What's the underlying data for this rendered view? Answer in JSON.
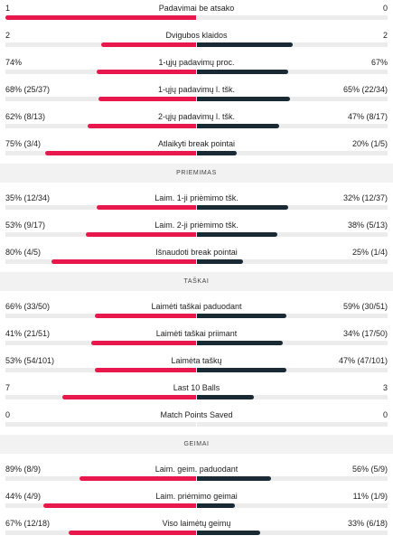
{
  "colors": {
    "player1": "#e8184d",
    "player2": "#1a2a35",
    "track": "#ececec",
    "section_bg": "#f2f2f2"
  },
  "section_serve": {
    "rows": [
      {
        "label": "Padavimai be atsako",
        "left": "1",
        "right": "0",
        "left_frac": 1.0,
        "right_frac": 0.0
      },
      {
        "label": "Dvigubos klaidos",
        "left": "2",
        "right": "2",
        "left_frac": 0.5,
        "right_frac": 0.5
      },
      {
        "label": "1-ųjų padavimų proc.",
        "left": "74%",
        "right": "67%",
        "left_frac": 0.52,
        "right_frac": 0.48
      },
      {
        "label": "1-ųjų padavimų l. tšk.",
        "left": "68% (25/37)",
        "right": "65% (22/34)",
        "left_frac": 0.51,
        "right_frac": 0.49
      },
      {
        "label": "2-ųjų padavimų l. tšk.",
        "left": "62% (8/13)",
        "right": "47% (8/17)",
        "left_frac": 0.57,
        "right_frac": 0.43
      },
      {
        "label": "Atlaikyti break pointai",
        "left": "75% (3/4)",
        "right": "20% (1/5)",
        "left_frac": 0.79,
        "right_frac": 0.21
      }
    ]
  },
  "section_return": {
    "title": "PRIEMIMAS",
    "rows": [
      {
        "label": "Laim. 1-ji priėmimo tšk.",
        "left": "35% (12/34)",
        "right": "32% (12/37)",
        "left_frac": 0.52,
        "right_frac": 0.48
      },
      {
        "label": "Laim. 2-ji priėmimo tšk.",
        "left": "53% (9/17)",
        "right": "38% (5/13)",
        "left_frac": 0.58,
        "right_frac": 0.42
      },
      {
        "label": "Išnaudoti break pointai",
        "left": "80% (4/5)",
        "right": "25% (1/4)",
        "left_frac": 0.76,
        "right_frac": 0.24
      }
    ]
  },
  "section_points": {
    "title": "TAŠKAI",
    "rows": [
      {
        "label": "Laimėti taškai paduodant",
        "left": "66% (33/50)",
        "right": "59% (30/51)",
        "left_frac": 0.53,
        "right_frac": 0.47
      },
      {
        "label": "Laimėti taškai priimant",
        "left": "41% (21/51)",
        "right": "34% (17/50)",
        "left_frac": 0.55,
        "right_frac": 0.45
      },
      {
        "label": "Laimėta taškų",
        "left": "53% (54/101)",
        "right": "47% (47/101)",
        "left_frac": 0.53,
        "right_frac": 0.47
      },
      {
        "label": "Last 10 Balls",
        "left": "7",
        "right": "3",
        "left_frac": 0.7,
        "right_frac": 0.3
      },
      {
        "label": "Match Points Saved",
        "left": "0",
        "right": "0",
        "left_frac": 0.0,
        "right_frac": 0.0
      }
    ]
  },
  "section_games": {
    "title": "GEIMAI",
    "rows": [
      {
        "label": "Laim. geim. paduodant",
        "left": "89% (8/9)",
        "right": "56% (5/9)",
        "left_frac": 0.61,
        "right_frac": 0.39
      },
      {
        "label": "Laim. priėmimo geimai",
        "left": "44% (4/9)",
        "right": "11% (1/9)",
        "left_frac": 0.8,
        "right_frac": 0.2
      },
      {
        "label": "Viso laimėtų geimų",
        "left": "67% (12/18)",
        "right": "33% (6/18)",
        "left_frac": 0.67,
        "right_frac": 0.33
      }
    ]
  }
}
